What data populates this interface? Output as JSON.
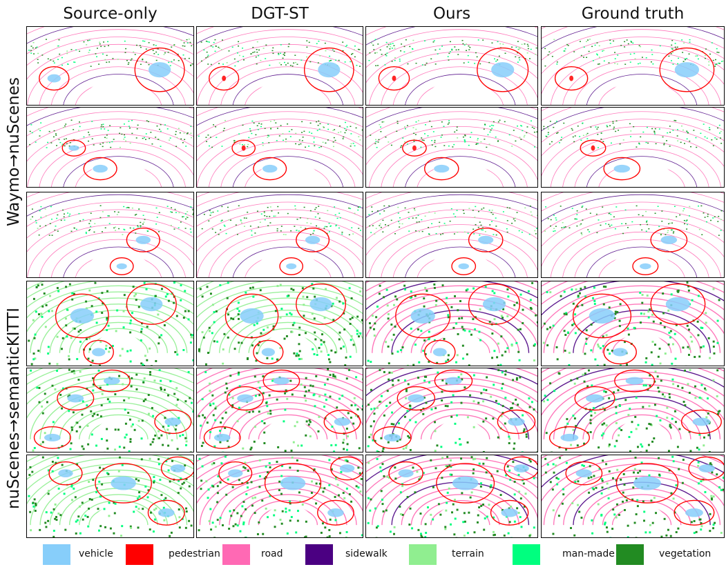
{
  "columns": [
    "Source-only",
    "DGT-ST",
    "Ours",
    "Ground truth"
  ],
  "row_groups": [
    {
      "label": "Waymo→nuScenes",
      "rows": 3
    },
    {
      "label": "nuScenes→semanticKITTI",
      "rows": 3
    }
  ],
  "legend": [
    {
      "label": "vehicle",
      "color": "#87CEFA"
    },
    {
      "label": "pedestrian",
      "color": "#FF0000"
    },
    {
      "label": "road",
      "color": "#FF69B4"
    },
    {
      "label": "sidewalk",
      "color": "#4B0082"
    },
    {
      "label": "terrain",
      "color": "#90EE90"
    },
    {
      "label": "man-made",
      "color": "#00FF7F"
    },
    {
      "label": "vegetation",
      "color": "#228B22"
    }
  ],
  "highlight_color": "#FF0000"
}
